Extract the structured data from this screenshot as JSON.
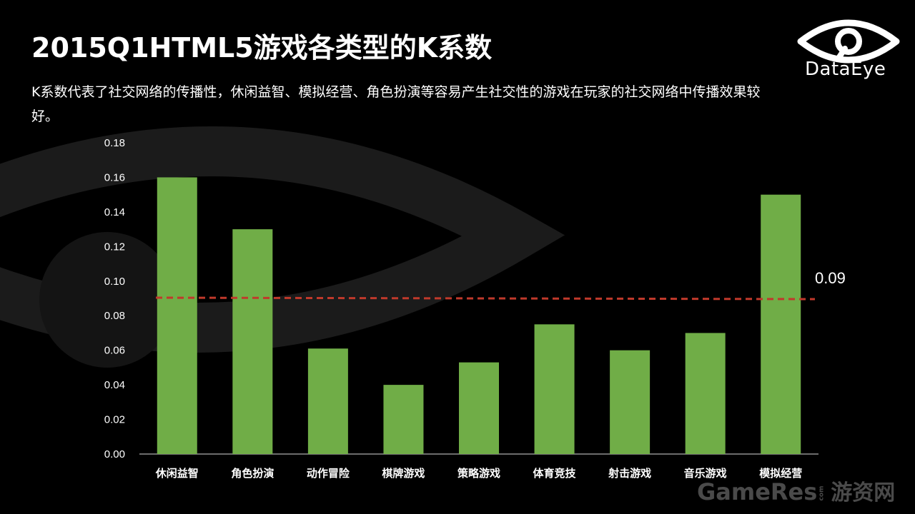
{
  "slide": {
    "title": "2015Q1HTML5游戏各类型的K系数",
    "subtitle": "K系数代表了社交网络的传播性，休闲益智、模拟经营、角色扮演等容易产生社交性的游戏在玩家的社交网络中传播效果较好。",
    "logo_text": "DataEye",
    "watermark_main": "GameRes",
    "watermark_com": "com",
    "watermark_cn": "游资网"
  },
  "colors": {
    "background": "#000000",
    "bar": "#70ad47",
    "reference_line": "#c0392b",
    "axis_text": "#ffffff",
    "background_shape": "#1c1c1c"
  },
  "chart_data": {
    "type": "bar",
    "categories": [
      "休闲益智",
      "角色扮演",
      "动作冒险",
      "棋牌游戏",
      "策略游戏",
      "体育竞技",
      "射击游戏",
      "音乐游戏",
      "模拟经营"
    ],
    "values": [
      0.16,
      0.13,
      0.061,
      0.04,
      0.053,
      0.075,
      0.06,
      0.07,
      0.15
    ],
    "ylim": [
      0,
      0.18
    ],
    "yticks": [
      "0.00",
      "0.02",
      "0.04",
      "0.06",
      "0.08",
      "0.10",
      "0.12",
      "0.14",
      "0.16",
      "0.18"
    ],
    "reference_line": {
      "value": 0.09,
      "label": "0.09",
      "style": "dashed"
    },
    "grid": false,
    "legend": "none",
    "title": "",
    "xlabel": "",
    "ylabel": ""
  }
}
